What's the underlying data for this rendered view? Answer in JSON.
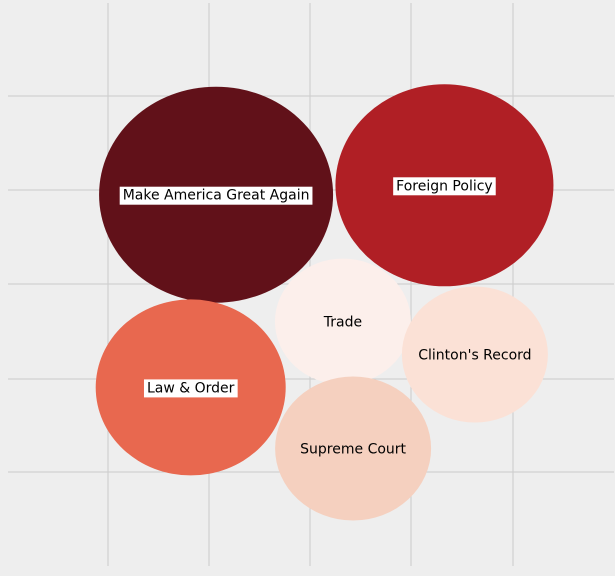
{
  "chart_data": {
    "type": "bubble",
    "title": "",
    "xlabel": "",
    "ylabel": "",
    "grid": true,
    "legend": "none",
    "series": [
      {
        "name": "Make America Great Again",
        "x": 2.05,
        "y": 3.95,
        "color": "#611119",
        "label_boxed": true
      },
      {
        "name": "Foreign Policy",
        "x": 4.3,
        "y": 4.05,
        "color": "#b01f25",
        "label_boxed": true
      },
      {
        "name": "Trade",
        "x": 3.3,
        "y": 2.6,
        "color": "#fcefeb",
        "label_boxed": false
      },
      {
        "name": "Clinton's Record",
        "x": 4.6,
        "y": 2.25,
        "color": "#fbe1d6",
        "label_boxed": false
      },
      {
        "name": "Law & Order",
        "x": 1.8,
        "y": 1.9,
        "color": "#e8684f",
        "label_boxed": true
      },
      {
        "name": "Supreme Court",
        "x": 3.4,
        "y": 1.25,
        "color": "#f5d0bf",
        "label_boxed": false
      }
    ]
  }
}
